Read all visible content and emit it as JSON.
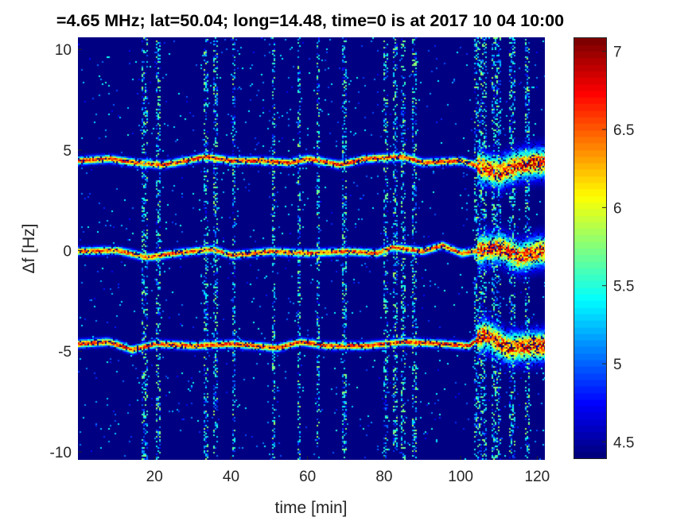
{
  "chart_data": {
    "type": "heatmap",
    "title": "=4.65 MHz;  lat=50.04; long=14.48, time=0 is at 2017 10 04 10:00",
    "xlabel": "time [min]",
    "ylabel": "Δf [Hz]",
    "xlim": [
      0,
      122
    ],
    "ylim": [
      -10.4,
      10.6
    ],
    "xticks": [
      20,
      40,
      60,
      80,
      100,
      120
    ],
    "xtick_labels": [
      "20",
      "40",
      "60",
      "80",
      "100",
      "120"
    ],
    "yticks": [
      10,
      5,
      0,
      -5,
      -10
    ],
    "ytick_labels": [
      "10",
      "5",
      "0",
      "-5",
      "-10"
    ],
    "colormap": "jet",
    "clim": [
      4.39,
      7.09
    ],
    "colorbar_ticks": [
      7,
      6.5,
      6,
      5.5,
      5,
      4.5
    ],
    "colorbar_tick_labels": [
      "7",
      "6.5",
      "6",
      "5.5",
      "5",
      "4.5"
    ],
    "background_level": 4.4,
    "line_traces": [
      {
        "name": "upper",
        "peak": 7.0,
        "points": [
          [
            0,
            4.5
          ],
          [
            8,
            4.6
          ],
          [
            15,
            4.4
          ],
          [
            22,
            4.3
          ],
          [
            28,
            4.5
          ],
          [
            33,
            4.7
          ],
          [
            40,
            4.5
          ],
          [
            48,
            4.5
          ],
          [
            55,
            4.4
          ],
          [
            60,
            4.6
          ],
          [
            68,
            4.3
          ],
          [
            75,
            4.6
          ],
          [
            85,
            4.7
          ],
          [
            90,
            4.4
          ],
          [
            100,
            4.5
          ],
          [
            105,
            4.2
          ],
          [
            110,
            3.9
          ],
          [
            115,
            4.3
          ],
          [
            120,
            4.4
          ],
          [
            122,
            4.4
          ]
        ]
      },
      {
        "name": "center",
        "peak": 6.9,
        "points": [
          [
            0,
            0
          ],
          [
            10,
            0.05
          ],
          [
            18,
            -0.3
          ],
          [
            25,
            -0.1
          ],
          [
            35,
            0.1
          ],
          [
            40,
            -0.2
          ],
          [
            50,
            0
          ],
          [
            60,
            -0.1
          ],
          [
            70,
            0
          ],
          [
            78,
            -0.1
          ],
          [
            82,
            0.2
          ],
          [
            90,
            0
          ],
          [
            95,
            0.3
          ],
          [
            100,
            -0.1
          ],
          [
            110,
            0.2
          ],
          [
            115,
            -0.3
          ],
          [
            120,
            0
          ],
          [
            122,
            0
          ]
        ]
      },
      {
        "name": "lower",
        "peak": 7.0,
        "points": [
          [
            0,
            -4.6
          ],
          [
            8,
            -4.5
          ],
          [
            14,
            -4.9
          ],
          [
            20,
            -4.6
          ],
          [
            30,
            -4.7
          ],
          [
            40,
            -4.6
          ],
          [
            52,
            -4.8
          ],
          [
            58,
            -4.5
          ],
          [
            65,
            -4.7
          ],
          [
            75,
            -4.7
          ],
          [
            85,
            -4.5
          ],
          [
            95,
            -4.6
          ],
          [
            102,
            -4.7
          ],
          [
            106,
            -4.1
          ],
          [
            112,
            -4.8
          ],
          [
            120,
            -4.7
          ],
          [
            122,
            -4.7
          ]
        ]
      }
    ],
    "noise_bands_min": [
      [
        16.5,
        18
      ],
      [
        20,
        21.5
      ],
      [
        32.5,
        34
      ],
      [
        35,
        36.5
      ],
      [
        40,
        41
      ],
      [
        50.5,
        51.5
      ],
      [
        57,
        58
      ],
      [
        62,
        63
      ],
      [
        69,
        70
      ],
      [
        79.5,
        81
      ],
      [
        82,
        83.5
      ],
      [
        84,
        85.5
      ],
      [
        87,
        88.5
      ],
      [
        103.5,
        106.5
      ],
      [
        108,
        110.5
      ],
      [
        112.5,
        114
      ],
      [
        116.5,
        118
      ]
    ],
    "disturbed_region_min": [
      104,
      122
    ]
  }
}
